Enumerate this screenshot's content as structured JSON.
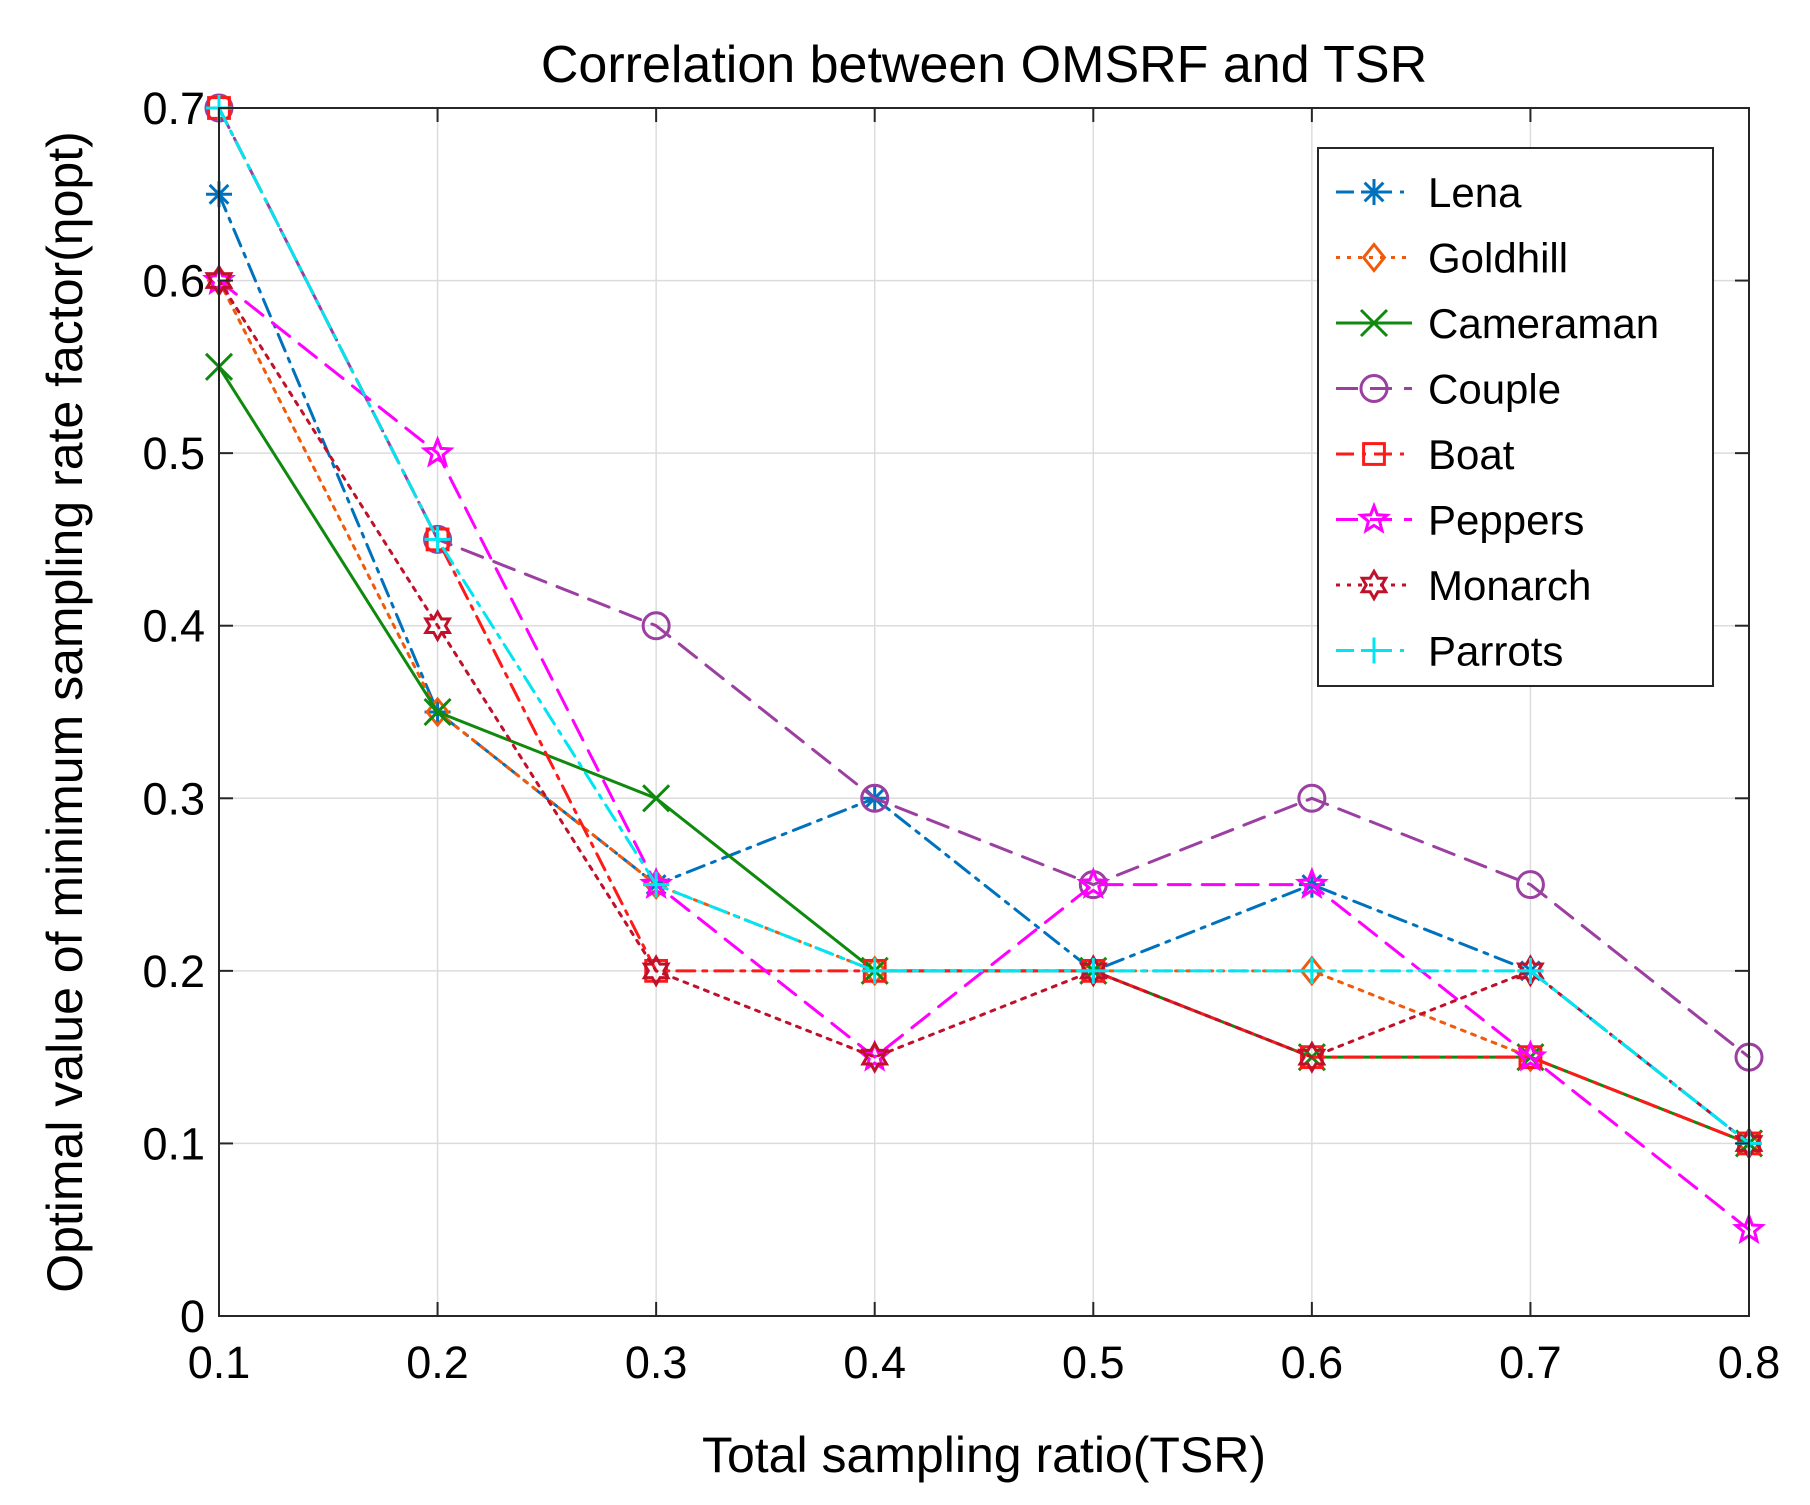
{
  "chart_data": {
    "type": "line",
    "title": "Correlation between OMSRF and TSR",
    "xlabel": "Total sampling ratio(TSR)",
    "ylabel": "Optimal value of minimum sampling rate factor(ηopt)",
    "x": [
      0.1,
      0.2,
      0.3,
      0.4,
      0.5,
      0.6,
      0.7,
      0.8
    ],
    "xlim": [
      0.1,
      0.8
    ],
    "ylim": [
      0,
      0.7
    ],
    "xticks": [
      "0.1",
      "0.2",
      "0.3",
      "0.4",
      "0.5",
      "0.6",
      "0.7",
      "0.8"
    ],
    "yticks": [
      "0",
      "0.1",
      "0.2",
      "0.3",
      "0.4",
      "0.5",
      "0.6",
      "0.7"
    ],
    "grid": true,
    "legend_position": "top-right",
    "series": [
      {
        "name": "Lena",
        "values": [
          0.65,
          0.35,
          0.25,
          0.3,
          0.2,
          0.25,
          0.2,
          0.1
        ],
        "color": "#0072BD",
        "dash": "dashdot",
        "marker": "asterisk"
      },
      {
        "name": "Goldhill",
        "values": [
          0.6,
          0.35,
          0.25,
          0.2,
          0.2,
          0.2,
          0.15,
          0.1
        ],
        "color": "#F05A0A",
        "dash": "dotted",
        "marker": "diamond"
      },
      {
        "name": "Cameraman",
        "values": [
          0.55,
          0.35,
          0.3,
          0.2,
          0.2,
          0.15,
          0.15,
          0.1
        ],
        "color": "#0F8A0F",
        "dash": "solid",
        "marker": "x"
      },
      {
        "name": "Couple",
        "values": [
          0.7,
          0.45,
          0.4,
          0.3,
          0.25,
          0.3,
          0.25,
          0.15
        ],
        "color": "#9B3FA0",
        "dash": "dashed",
        "marker": "circle"
      },
      {
        "name": "Boat",
        "values": [
          0.7,
          0.45,
          0.2,
          0.2,
          0.2,
          0.15,
          0.15,
          0.1
        ],
        "color": "#FF1A1A",
        "dash": "dashdot",
        "marker": "square"
      },
      {
        "name": "Peppers",
        "values": [
          0.6,
          0.5,
          0.25,
          0.15,
          0.25,
          0.25,
          0.15,
          0.05
        ],
        "color": "#FF00FF",
        "dash": "dashed",
        "marker": "star"
      },
      {
        "name": "Monarch",
        "values": [
          0.6,
          0.4,
          0.2,
          0.15,
          0.2,
          0.15,
          0.2,
          0.1
        ],
        "color": "#C0102A",
        "dash": "dotted",
        "marker": "hexagram"
      },
      {
        "name": "Parrots",
        "values": [
          0.7,
          0.45,
          0.25,
          0.2,
          0.2,
          0.2,
          0.2,
          0.1
        ],
        "color": "#00E5F0",
        "dash": "dashdot",
        "marker": "plus"
      }
    ]
  }
}
